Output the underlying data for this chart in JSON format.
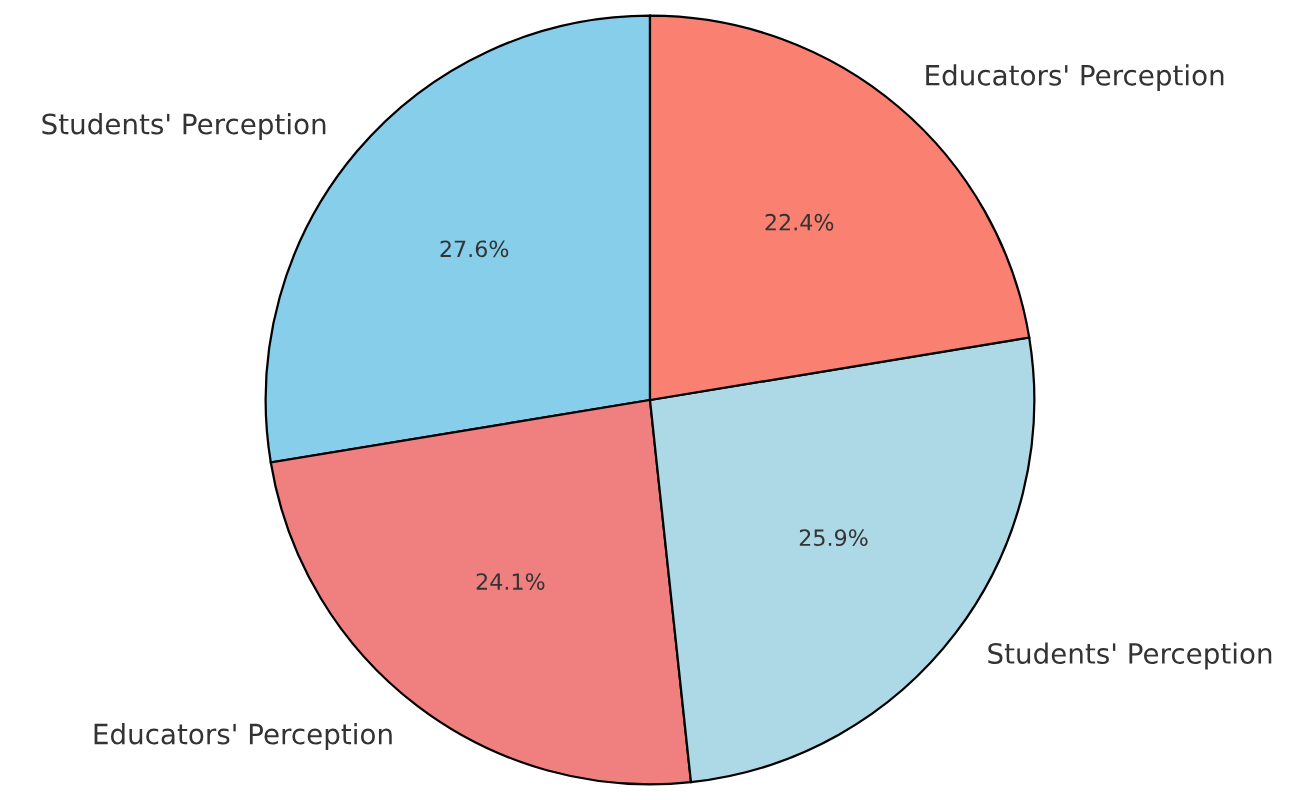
{
  "chart_data": {
    "type": "pie",
    "categories": [
      "Students' Perception",
      "Educators' Perception",
      "Students' Perception",
      "Educators' Perception"
    ],
    "values": [
      27.6,
      24.1,
      25.9,
      22.4
    ],
    "value_labels": [
      "27.6%",
      "24.1%",
      "25.9%",
      "22.4%"
    ],
    "colors": [
      "#87ceeb",
      "#f08080",
      "#add8e6",
      "#fa8072"
    ]
  }
}
